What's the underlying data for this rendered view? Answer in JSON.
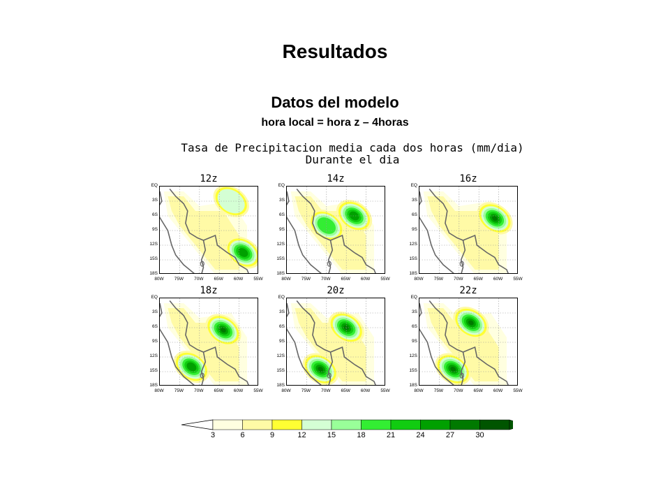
{
  "slide": {
    "title": "Resultados",
    "subtitle": "Datos del modelo",
    "subtitle2": "hora local = hora z – 4horas"
  },
  "figure": {
    "title_line1": "Tasa de Precipitacion media cada dos horas (mm/dia)",
    "title_line2": "Durante el dia",
    "lat_labels": [
      "EQ",
      "3S",
      "6S",
      "9S",
      "12S",
      "15S",
      "18S"
    ],
    "lon_labels": [
      "80W",
      "75W",
      "70W",
      "65W",
      "60W",
      "55W"
    ],
    "panels": [
      {
        "label": "12z",
        "maxima": [
          {
            "lon": -59,
            "lat": -13.5,
            "intensity": 2
          },
          {
            "lon": -62,
            "lat": -3,
            "intensity": 0
          }
        ]
      },
      {
        "label": "14z",
        "maxima": [
          {
            "lon": -63,
            "lat": -6,
            "intensity": 2
          },
          {
            "lon": -70,
            "lat": -8,
            "intensity": 1
          }
        ]
      },
      {
        "label": "16z",
        "maxima": [
          {
            "lon": -61,
            "lat": -6.5,
            "intensity": 3
          }
        ]
      },
      {
        "label": "18z",
        "maxima": [
          {
            "lon": -64,
            "lat": -6.5,
            "intensity": 3
          },
          {
            "lon": -72,
            "lat": -14,
            "intensity": 2
          }
        ]
      },
      {
        "label": "20z",
        "maxima": [
          {
            "lon": -65,
            "lat": -6,
            "intensity": 3
          },
          {
            "lon": -71.5,
            "lat": -14.5,
            "intensity": 3
          }
        ]
      },
      {
        "label": "22z",
        "maxima": [
          {
            "lon": -67,
            "lat": -5,
            "intensity": 3
          },
          {
            "lon": -71.5,
            "lat": -14.5,
            "intensity": 3
          }
        ]
      }
    ]
  },
  "colorbar": {
    "labels": [
      "3",
      "6",
      "9",
      "12",
      "15",
      "18",
      "21",
      "24",
      "27",
      "30"
    ],
    "colors": [
      "#ffffe0",
      "#fffaa6",
      "#ffff33",
      "#d4ffd4",
      "#99ff99",
      "#33ee33",
      "#11cc11",
      "#00a000",
      "#007a00",
      "#005500"
    ]
  }
}
